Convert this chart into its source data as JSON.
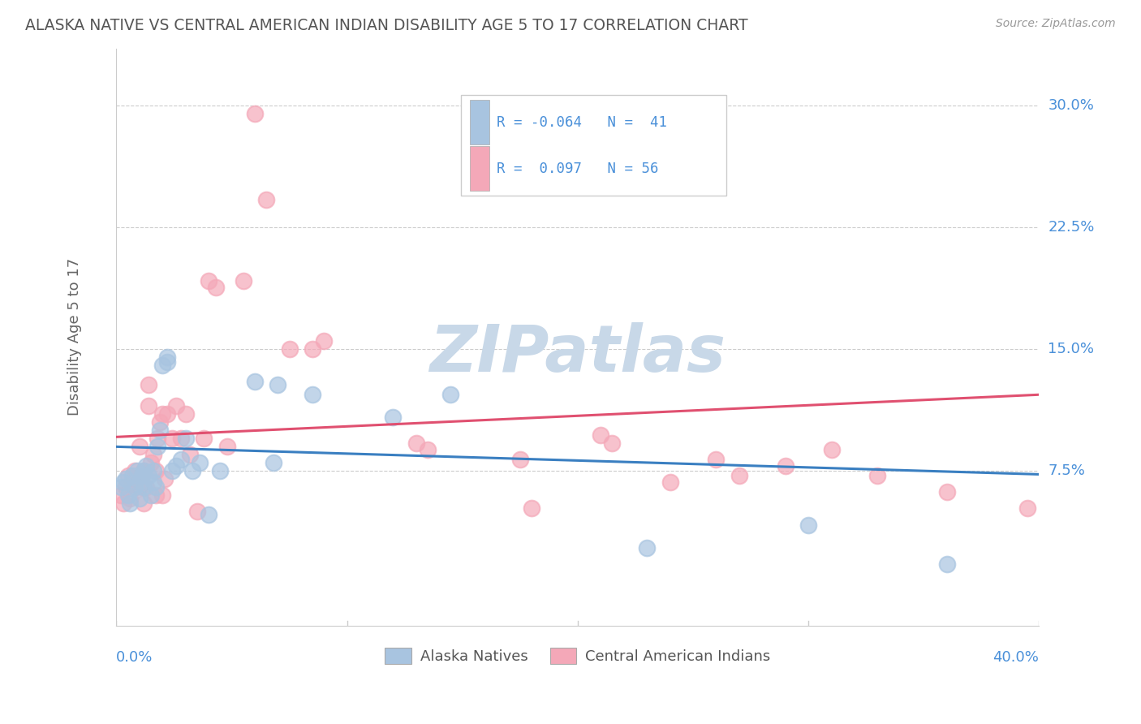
{
  "title": "ALASKA NATIVE VS CENTRAL AMERICAN INDIAN DISABILITY AGE 5 TO 17 CORRELATION CHART",
  "source": "Source: ZipAtlas.com",
  "xlabel_bottom_left": "0.0%",
  "xlabel_bottom_right": "40.0%",
  "ylabel": "Disability Age 5 to 17",
  "yticks": [
    "7.5%",
    "15.0%",
    "22.5%",
    "30.0%"
  ],
  "ytick_vals": [
    0.075,
    0.15,
    0.225,
    0.3
  ],
  "xlim": [
    0.0,
    0.4
  ],
  "ylim": [
    -0.02,
    0.335
  ],
  "color_blue": "#a8c4e0",
  "color_pink": "#f4a8b8",
  "line_color_blue": "#3a7fc1",
  "line_color_pink": "#e05070",
  "title_color": "#555555",
  "axis_label_color": "#4a90d9",
  "alaska_x": [
    0.002,
    0.003,
    0.004,
    0.005,
    0.006,
    0.007,
    0.008,
    0.009,
    0.01,
    0.01,
    0.011,
    0.012,
    0.012,
    0.013,
    0.014,
    0.015,
    0.016,
    0.016,
    0.017,
    0.018,
    0.019,
    0.02,
    0.022,
    0.022,
    0.024,
    0.026,
    0.028,
    0.03,
    0.033,
    0.036,
    0.04,
    0.045,
    0.06,
    0.068,
    0.07,
    0.085,
    0.12,
    0.145,
    0.23,
    0.3,
    0.36
  ],
  "alaska_y": [
    0.065,
    0.068,
    0.07,
    0.06,
    0.055,
    0.072,
    0.065,
    0.075,
    0.068,
    0.058,
    0.072,
    0.065,
    0.075,
    0.078,
    0.072,
    0.06,
    0.075,
    0.068,
    0.065,
    0.09,
    0.1,
    0.14,
    0.142,
    0.145,
    0.075,
    0.078,
    0.082,
    0.095,
    0.075,
    0.08,
    0.048,
    0.075,
    0.13,
    0.08,
    0.128,
    0.122,
    0.108,
    0.122,
    0.028,
    0.042,
    0.018
  ],
  "central_x": [
    0.002,
    0.003,
    0.004,
    0.005,
    0.006,
    0.007,
    0.008,
    0.009,
    0.01,
    0.01,
    0.011,
    0.012,
    0.012,
    0.013,
    0.014,
    0.014,
    0.015,
    0.016,
    0.017,
    0.017,
    0.018,
    0.019,
    0.02,
    0.02,
    0.021,
    0.022,
    0.024,
    0.026,
    0.028,
    0.03,
    0.032,
    0.035,
    0.038,
    0.04,
    0.043,
    0.048,
    0.055,
    0.06,
    0.065,
    0.075,
    0.085,
    0.09,
    0.13,
    0.135,
    0.175,
    0.18,
    0.21,
    0.215,
    0.24,
    0.26,
    0.27,
    0.29,
    0.31,
    0.33,
    0.36,
    0.395
  ],
  "central_y": [
    0.06,
    0.055,
    0.065,
    0.072,
    0.058,
    0.068,
    0.075,
    0.07,
    0.065,
    0.09,
    0.072,
    0.075,
    0.055,
    0.065,
    0.115,
    0.128,
    0.08,
    0.085,
    0.06,
    0.075,
    0.095,
    0.105,
    0.06,
    0.11,
    0.07,
    0.11,
    0.095,
    0.115,
    0.095,
    0.11,
    0.085,
    0.05,
    0.095,
    0.192,
    0.188,
    0.09,
    0.192,
    0.295,
    0.242,
    0.15,
    0.15,
    0.155,
    0.092,
    0.088,
    0.082,
    0.052,
    0.097,
    0.092,
    0.068,
    0.082,
    0.072,
    0.078,
    0.088,
    0.072,
    0.062,
    0.052
  ],
  "alaska_trend_x": [
    0.0,
    0.4
  ],
  "alaska_trend_y_start": 0.09,
  "alaska_trend_y_end": 0.073,
  "central_trend_x": [
    0.0,
    0.4
  ],
  "central_trend_y_start": 0.096,
  "central_trend_y_end": 0.122,
  "grid_color": "#cccccc",
  "background_color": "#ffffff",
  "watermark": "ZIPatlas",
  "watermark_color": "#c8d8e8"
}
